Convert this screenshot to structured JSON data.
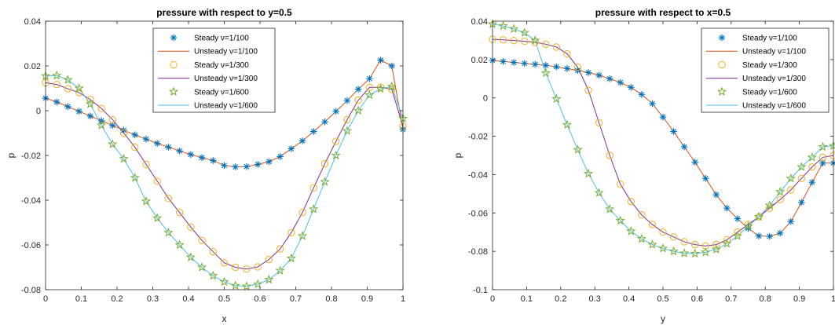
{
  "colors": {
    "steady_100": "#0072BD",
    "unsteady_100": "#D95319",
    "steady_300": "#EDB120",
    "unsteady_300": "#7E2F8E",
    "steady_600": "#77AC30",
    "unsteady_600": "#4DBEEE"
  },
  "chart_data": [
    {
      "type": "line",
      "title": "pressure with respect to y=0.5",
      "xlabel": "x",
      "ylabel": "p",
      "xlim": [
        0,
        1
      ],
      "ylim": [
        -0.08,
        0.04
      ],
      "xticks": [
        "0",
        "0.1",
        "0.2",
        "0.3",
        "0.4",
        "0.5",
        "0.6",
        "0.7",
        "0.8",
        "0.9",
        "1"
      ],
      "yticks": [
        "-0.08",
        "-0.06",
        "-0.04",
        "-0.02",
        "0",
        "0.02",
        "0.04"
      ],
      "legend_position": "top-right",
      "grid": false,
      "series": [
        {
          "name": "Steady ν=1/100",
          "style": "marker",
          "marker": "asterisk",
          "color_key": "steady_100",
          "x": [
            0,
            0.03125,
            0.0625,
            0.09375,
            0.125,
            0.15625,
            0.1875,
            0.21875,
            0.25,
            0.28125,
            0.3125,
            0.34375,
            0.375,
            0.40625,
            0.4375,
            0.46875,
            0.5,
            0.53125,
            0.5625,
            0.59375,
            0.625,
            0.65625,
            0.6875,
            0.71875,
            0.75,
            0.78125,
            0.8125,
            0.84375,
            0.875,
            0.90625,
            0.9375,
            0.96875,
            1
          ],
          "y": [
            0.0056,
            0.0039,
            0.0018,
            -0.0003,
            -0.0024,
            -0.0045,
            -0.0066,
            -0.0087,
            -0.0108,
            -0.0127,
            -0.0146,
            -0.0163,
            -0.018,
            -0.0196,
            -0.021,
            -0.0223,
            -0.0245,
            -0.0251,
            -0.025,
            -0.024,
            -0.0228,
            -0.0205,
            -0.017,
            -0.0135,
            -0.0093,
            -0.005,
            -0.0003,
            0.0045,
            0.0096,
            0.0143,
            0.0226,
            0.02,
            -0.0084
          ]
        },
        {
          "name": "Unsteady ν=1/100",
          "style": "line",
          "color_key": "unsteady_100",
          "x": [
            0,
            0.03125,
            0.0625,
            0.09375,
            0.125,
            0.15625,
            0.1875,
            0.21875,
            0.25,
            0.28125,
            0.3125,
            0.34375,
            0.375,
            0.40625,
            0.4375,
            0.46875,
            0.5,
            0.53125,
            0.5625,
            0.59375,
            0.625,
            0.65625,
            0.6875,
            0.71875,
            0.75,
            0.78125,
            0.8125,
            0.84375,
            0.875,
            0.90625,
            0.9375,
            0.96875,
            1
          ],
          "y": [
            0.0056,
            0.0039,
            0.0018,
            -0.0003,
            -0.0024,
            -0.0045,
            -0.0066,
            -0.0087,
            -0.0108,
            -0.0127,
            -0.0146,
            -0.0163,
            -0.018,
            -0.0196,
            -0.021,
            -0.0223,
            -0.0245,
            -0.0251,
            -0.025,
            -0.024,
            -0.0228,
            -0.0205,
            -0.017,
            -0.0135,
            -0.0093,
            -0.005,
            -0.0003,
            0.0045,
            0.0096,
            0.0143,
            0.0226,
            0.02,
            -0.0084
          ]
        },
        {
          "name": "Steady ν=1/300",
          "style": "marker",
          "marker": "circle",
          "color_key": "steady_300",
          "x": [
            0,
            0.03125,
            0.0625,
            0.09375,
            0.125,
            0.15625,
            0.1875,
            0.21875,
            0.25,
            0.28125,
            0.3125,
            0.34375,
            0.375,
            0.40625,
            0.4375,
            0.46875,
            0.5,
            0.53125,
            0.5625,
            0.59375,
            0.625,
            0.65625,
            0.6875,
            0.71875,
            0.75,
            0.78125,
            0.8125,
            0.84375,
            0.875,
            0.90625,
            0.9375,
            0.96875,
            1
          ],
          "y": [
            0.0125,
            0.0117,
            0.0098,
            0.0081,
            0.005,
            0.001,
            -0.004,
            -0.01,
            -0.0163,
            -0.024,
            -0.0315,
            -0.0392,
            -0.0455,
            -0.052,
            -0.058,
            -0.063,
            -0.068,
            -0.07,
            -0.0708,
            -0.0698,
            -0.0665,
            -0.0618,
            -0.0545,
            -0.0455,
            -0.0345,
            -0.0237,
            -0.0137,
            -0.004,
            0.0047,
            0.0104,
            0.0105,
            0.0095,
            -0.007
          ]
        },
        {
          "name": "Unsteady ν=1/300",
          "style": "line",
          "color_key": "unsteady_300",
          "x": [
            0,
            0.03125,
            0.0625,
            0.09375,
            0.125,
            0.15625,
            0.1875,
            0.21875,
            0.25,
            0.28125,
            0.3125,
            0.34375,
            0.375,
            0.40625,
            0.4375,
            0.46875,
            0.5,
            0.53125,
            0.5625,
            0.59375,
            0.625,
            0.65625,
            0.6875,
            0.71875,
            0.75,
            0.78125,
            0.8125,
            0.84375,
            0.875,
            0.90625,
            0.9375,
            0.96875,
            1
          ],
          "y": [
            0.0125,
            0.0117,
            0.0098,
            0.0081,
            0.005,
            0.001,
            -0.004,
            -0.01,
            -0.0163,
            -0.024,
            -0.0315,
            -0.0392,
            -0.0455,
            -0.052,
            -0.058,
            -0.063,
            -0.068,
            -0.07,
            -0.0708,
            -0.0698,
            -0.0665,
            -0.0618,
            -0.0545,
            -0.0455,
            -0.0345,
            -0.0237,
            -0.0137,
            -0.004,
            0.0047,
            0.0104,
            0.0105,
            0.0095,
            -0.007
          ]
        },
        {
          "name": "Steady ν=1/600",
          "style": "marker",
          "marker": "pentagram",
          "color_key": "steady_600",
          "x": [
            0,
            0.03125,
            0.0625,
            0.09375,
            0.125,
            0.15625,
            0.1875,
            0.21875,
            0.25,
            0.28125,
            0.3125,
            0.34375,
            0.375,
            0.40625,
            0.4375,
            0.46875,
            0.5,
            0.53125,
            0.5625,
            0.59375,
            0.625,
            0.65625,
            0.6875,
            0.71875,
            0.75,
            0.78125,
            0.8125,
            0.84375,
            0.875,
            0.90625,
            0.9375,
            0.96875,
            1
          ],
          "y": [
            0.0155,
            0.0157,
            0.0138,
            0.01,
            0.003,
            -0.0065,
            -0.015,
            -0.0215,
            -0.03,
            -0.0405,
            -0.048,
            -0.0545,
            -0.06,
            -0.0655,
            -0.07,
            -0.0738,
            -0.0765,
            -0.0782,
            -0.0785,
            -0.0775,
            -0.0755,
            -0.0715,
            -0.066,
            -0.056,
            -0.044,
            -0.0318,
            -0.02,
            -0.009,
            0.0,
            0.007,
            0.0098,
            0.0108,
            -0.0035
          ]
        },
        {
          "name": "Unsteady ν=1/600",
          "style": "line",
          "color_key": "unsteady_600",
          "x": [
            0,
            0.03125,
            0.0625,
            0.09375,
            0.125,
            0.15625,
            0.1875,
            0.21875,
            0.25,
            0.28125,
            0.3125,
            0.34375,
            0.375,
            0.40625,
            0.4375,
            0.46875,
            0.5,
            0.53125,
            0.5625,
            0.59375,
            0.625,
            0.65625,
            0.6875,
            0.71875,
            0.75,
            0.78125,
            0.8125,
            0.84375,
            0.875,
            0.90625,
            0.9375,
            0.96875,
            1
          ],
          "y": [
            0.0155,
            0.0157,
            0.0138,
            0.01,
            0.003,
            -0.0065,
            -0.015,
            -0.0215,
            -0.03,
            -0.0405,
            -0.048,
            -0.0545,
            -0.06,
            -0.0655,
            -0.07,
            -0.0738,
            -0.0765,
            -0.0782,
            -0.0785,
            -0.0775,
            -0.0755,
            -0.0715,
            -0.066,
            -0.056,
            -0.044,
            -0.0318,
            -0.02,
            -0.009,
            0.0,
            0.007,
            0.0098,
            0.0108,
            -0.0035
          ]
        }
      ]
    },
    {
      "type": "line",
      "title": "pressure with respect to x=0.5",
      "xlabel": "y",
      "ylabel": "p",
      "xlim": [
        0,
        1
      ],
      "ylim": [
        -0.1,
        0.04
      ],
      "xticks": [
        "0",
        "0.1",
        "0.2",
        "0.3",
        "0.4",
        "0.5",
        "0.6",
        "0.7",
        "0.8",
        "0.9",
        "1"
      ],
      "yticks": [
        "-0.1",
        "-0.08",
        "-0.06",
        "-0.04",
        "-0.02",
        "0",
        "0.02",
        "0.04"
      ],
      "legend_position": "top-right",
      "grid": false,
      "series": [
        {
          "name": "Steady ν=1/100",
          "style": "marker",
          "marker": "asterisk",
          "color_key": "steady_100",
          "x": [
            0,
            0.03125,
            0.0625,
            0.09375,
            0.125,
            0.15625,
            0.1875,
            0.21875,
            0.25,
            0.28125,
            0.3125,
            0.34375,
            0.375,
            0.40625,
            0.4375,
            0.46875,
            0.5,
            0.53125,
            0.5625,
            0.59375,
            0.625,
            0.65625,
            0.6875,
            0.71875,
            0.75,
            0.78125,
            0.8125,
            0.84375,
            0.875,
            0.90625,
            0.9375,
            0.96875,
            1
          ],
          "y": [
            0.0195,
            0.019,
            0.0185,
            0.018,
            0.0175,
            0.017,
            0.0162,
            0.0153,
            0.0143,
            0.0132,
            0.0118,
            0.01,
            0.008,
            0.0055,
            0.0018,
            -0.003,
            -0.01,
            -0.0175,
            -0.0255,
            -0.0335,
            -0.042,
            -0.0505,
            -0.0575,
            -0.063,
            -0.068,
            -0.072,
            -0.0722,
            -0.0705,
            -0.0645,
            -0.0545,
            -0.044,
            -0.034,
            -0.034
          ]
        },
        {
          "name": "Unsteady ν=1/100",
          "style": "line",
          "color_key": "unsteady_100",
          "x": [
            0,
            0.03125,
            0.0625,
            0.09375,
            0.125,
            0.15625,
            0.1875,
            0.21875,
            0.25,
            0.28125,
            0.3125,
            0.34375,
            0.375,
            0.40625,
            0.4375,
            0.46875,
            0.5,
            0.53125,
            0.5625,
            0.59375,
            0.625,
            0.65625,
            0.6875,
            0.71875,
            0.75,
            0.78125,
            0.8125,
            0.84375,
            0.875,
            0.90625,
            0.9375,
            0.96875,
            1
          ],
          "y": [
            0.0195,
            0.019,
            0.0185,
            0.018,
            0.0175,
            0.017,
            0.0162,
            0.0153,
            0.0143,
            0.0132,
            0.0118,
            0.01,
            0.008,
            0.0055,
            0.0018,
            -0.003,
            -0.01,
            -0.0175,
            -0.0255,
            -0.0335,
            -0.042,
            -0.0505,
            -0.0575,
            -0.063,
            -0.068,
            -0.072,
            -0.0722,
            -0.0705,
            -0.0645,
            -0.0545,
            -0.044,
            -0.034,
            -0.034
          ]
        },
        {
          "name": "Steady ν=1/300",
          "style": "marker",
          "marker": "circle",
          "color_key": "steady_300",
          "x": [
            0,
            0.03125,
            0.0625,
            0.09375,
            0.125,
            0.15625,
            0.1875,
            0.21875,
            0.25,
            0.28125,
            0.3125,
            0.34375,
            0.375,
            0.40625,
            0.4375,
            0.46875,
            0.5,
            0.53125,
            0.5625,
            0.59375,
            0.625,
            0.65625,
            0.6875,
            0.71875,
            0.75,
            0.78125,
            0.8125,
            0.84375,
            0.875,
            0.90625,
            0.9375,
            0.96875,
            1
          ],
          "y": [
            0.0305,
            0.0303,
            0.0299,
            0.0295,
            0.029,
            0.028,
            0.0265,
            0.023,
            0.016,
            0.004,
            -0.013,
            -0.03,
            -0.045,
            -0.054,
            -0.061,
            -0.066,
            -0.07,
            -0.0725,
            -0.075,
            -0.0765,
            -0.0772,
            -0.0765,
            -0.074,
            -0.07,
            -0.066,
            -0.062,
            -0.0575,
            -0.053,
            -0.048,
            -0.042,
            -0.036,
            -0.031,
            -0.03
          ]
        },
        {
          "name": "Unsteady ν=1/300",
          "style": "line",
          "color_key": "unsteady_300",
          "x": [
            0,
            0.03125,
            0.0625,
            0.09375,
            0.125,
            0.15625,
            0.1875,
            0.21875,
            0.25,
            0.28125,
            0.3125,
            0.34375,
            0.375,
            0.40625,
            0.4375,
            0.46875,
            0.5,
            0.53125,
            0.5625,
            0.59375,
            0.625,
            0.65625,
            0.6875,
            0.71875,
            0.75,
            0.78125,
            0.8125,
            0.84375,
            0.875,
            0.90625,
            0.9375,
            0.96875,
            1
          ],
          "y": [
            0.0305,
            0.0303,
            0.0299,
            0.0295,
            0.029,
            0.028,
            0.0265,
            0.023,
            0.016,
            0.004,
            -0.013,
            -0.03,
            -0.045,
            -0.054,
            -0.061,
            -0.066,
            -0.07,
            -0.0725,
            -0.075,
            -0.0765,
            -0.0772,
            -0.0765,
            -0.074,
            -0.07,
            -0.066,
            -0.062,
            -0.0575,
            -0.053,
            -0.048,
            -0.042,
            -0.036,
            -0.031,
            -0.03
          ]
        },
        {
          "name": "Steady ν=1/600",
          "style": "marker",
          "marker": "pentagram",
          "color_key": "steady_600",
          "x": [
            0,
            0.03125,
            0.0625,
            0.09375,
            0.125,
            0.15625,
            0.1875,
            0.21875,
            0.25,
            0.28125,
            0.3125,
            0.34375,
            0.375,
            0.40625,
            0.4375,
            0.46875,
            0.5,
            0.53125,
            0.5625,
            0.59375,
            0.625,
            0.65625,
            0.6875,
            0.71875,
            0.75,
            0.78125,
            0.8125,
            0.84375,
            0.875,
            0.90625,
            0.9375,
            0.96875,
            1
          ],
          "y": [
            0.0385,
            0.0375,
            0.036,
            0.034,
            0.03,
            0.013,
            -0.0005,
            -0.014,
            -0.027,
            -0.0395,
            -0.0495,
            -0.058,
            -0.064,
            -0.0695,
            -0.0735,
            -0.0765,
            -0.0785,
            -0.08,
            -0.081,
            -0.0812,
            -0.0805,
            -0.079,
            -0.076,
            -0.072,
            -0.067,
            -0.062,
            -0.056,
            -0.049,
            -0.042,
            -0.036,
            -0.031,
            -0.0255,
            -0.025
          ]
        },
        {
          "name": "Unsteady ν=1/600",
          "style": "line",
          "color_key": "unsteady_600",
          "x": [
            0,
            0.03125,
            0.0625,
            0.09375,
            0.125,
            0.15625,
            0.1875,
            0.21875,
            0.25,
            0.28125,
            0.3125,
            0.34375,
            0.375,
            0.40625,
            0.4375,
            0.46875,
            0.5,
            0.53125,
            0.5625,
            0.59375,
            0.625,
            0.65625,
            0.6875,
            0.71875,
            0.75,
            0.78125,
            0.8125,
            0.84375,
            0.875,
            0.90625,
            0.9375,
            0.96875,
            1
          ],
          "y": [
            0.0385,
            0.0375,
            0.036,
            0.034,
            0.03,
            0.013,
            -0.0005,
            -0.014,
            -0.027,
            -0.0395,
            -0.0495,
            -0.058,
            -0.064,
            -0.0695,
            -0.0735,
            -0.0765,
            -0.0785,
            -0.08,
            -0.081,
            -0.0812,
            -0.0805,
            -0.079,
            -0.076,
            -0.072,
            -0.067,
            -0.062,
            -0.056,
            -0.049,
            -0.042,
            -0.036,
            -0.031,
            -0.0255,
            -0.025
          ]
        }
      ]
    }
  ]
}
